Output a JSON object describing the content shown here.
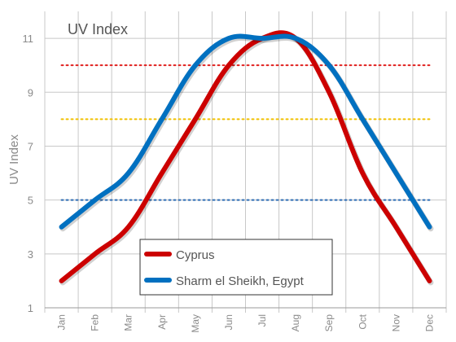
{
  "chart_data": {
    "type": "line",
    "title": "UV Index",
    "xlabel": "",
    "ylabel": "UV Index",
    "categories": [
      "Jan",
      "Feb",
      "Mar",
      "Apr",
      "May",
      "Jun",
      "Jul",
      "Aug",
      "Sep",
      "Oct",
      "Nov",
      "Dec"
    ],
    "yticks": [
      1,
      3,
      5,
      7,
      9,
      11
    ],
    "ylim": [
      1,
      12
    ],
    "grid": true,
    "legend_position": "bottom-center",
    "series": [
      {
        "name": "Cyprus",
        "color": "#cc0000",
        "values": [
          2,
          3,
          4,
          6,
          8,
          10,
          11,
          11,
          9,
          6,
          4,
          2
        ]
      },
      {
        "name": "Sharm el Sheikh, Egypt",
        "color": "#0070c0",
        "values": [
          4,
          5,
          6,
          8,
          10,
          11,
          11,
          11,
          10,
          8,
          6,
          4
        ]
      }
    ],
    "reference_lines": [
      {
        "value": 10,
        "color": "#e0201e",
        "style": "dotted"
      },
      {
        "value": 8,
        "color": "#f0c000",
        "style": "dotted"
      },
      {
        "value": 5,
        "color": "#2f6db5",
        "style": "dotted"
      }
    ]
  }
}
